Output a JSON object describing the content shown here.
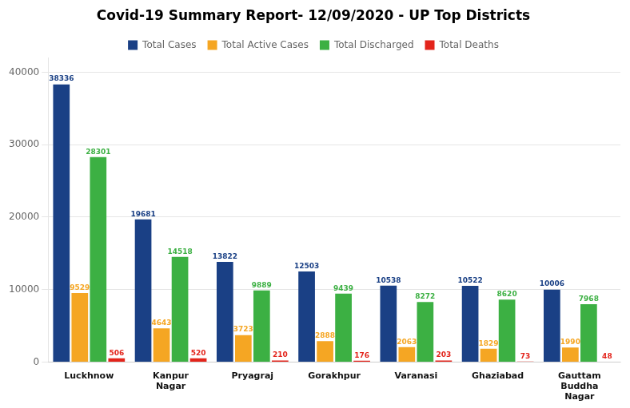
{
  "chart_data": {
    "type": "bar",
    "title": "Covid-19 Summary Report- 12/09/2020 - UP Top Districts",
    "categories": [
      "Luckhnow",
      "Kanpur\nNagar",
      "Pryagraj",
      "Gorakhpur",
      "Varanasi",
      "Ghaziabad",
      "Gauttam\nBuddha\nNagar"
    ],
    "series": [
      {
        "name": "Total Cases",
        "color": "#1a4085",
        "values": [
          38336,
          19681,
          13822,
          12503,
          10538,
          10522,
          10006
        ]
      },
      {
        "name": "Total Active Cases",
        "color": "#f5a623",
        "values": [
          9529,
          4643,
          3723,
          2888,
          2063,
          1829,
          1990
        ]
      },
      {
        "name": "Total Discharged",
        "color": "#3cb043",
        "values": [
          28301,
          14518,
          9889,
          9439,
          8272,
          8620,
          7968
        ]
      },
      {
        "name": "Total Deaths",
        "color": "#e3241b",
        "values": [
          506,
          520,
          210,
          176,
          203,
          73,
          48
        ]
      }
    ],
    "ylim": [
      0,
      42000
    ],
    "yticks": [
      0,
      10000,
      20000,
      30000,
      40000
    ],
    "grid": true,
    "data_labels": true,
    "legend": "top"
  }
}
